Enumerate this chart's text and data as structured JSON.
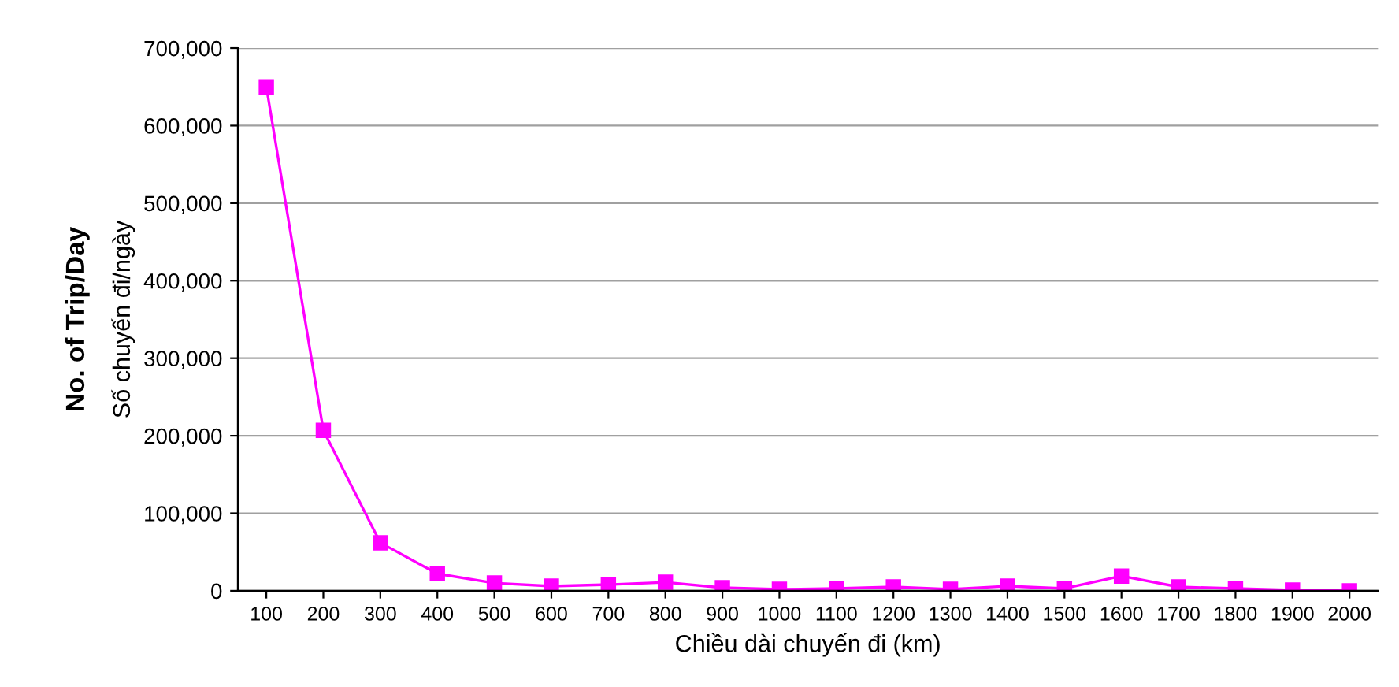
{
  "chart_data": {
    "type": "line",
    "xlabel": "Chiều dài chuyến đi (km)",
    "ylabel": "No. of Trip/Day",
    "annotations": [
      "Số chuyến đi/ngày"
    ],
    "categories": [
      "100",
      "200",
      "300",
      "400",
      "500",
      "600",
      "700",
      "800",
      "900",
      "1000",
      "1100",
      "1200",
      "1300",
      "1400",
      "1500",
      "1600",
      "1700",
      "1800",
      "1900",
      "2000"
    ],
    "series": [
      {
        "color": "#ff00ff",
        "values": [
          650000,
          207000,
          62000,
          22000,
          10000,
          6000,
          8000,
          11000,
          4000,
          2000,
          3000,
          5000,
          2000,
          6000,
          3000,
          19000,
          5000,
          3000,
          1000,
          0
        ]
      }
    ],
    "ylim": [
      0,
      700000
    ],
    "yticks": [
      {
        "value": 0,
        "label": "0"
      },
      {
        "value": 100000,
        "label": "100,000"
      },
      {
        "value": 200000,
        "label": "200,000"
      },
      {
        "value": 300000,
        "label": "300,000"
      },
      {
        "value": 400000,
        "label": "400,000"
      },
      {
        "value": 500000,
        "label": "500,000"
      },
      {
        "value": 600000,
        "label": "600,000"
      },
      {
        "value": 700000,
        "label": "700,000"
      }
    ],
    "grid": "y",
    "marker": "square",
    "line_style": "solid"
  }
}
